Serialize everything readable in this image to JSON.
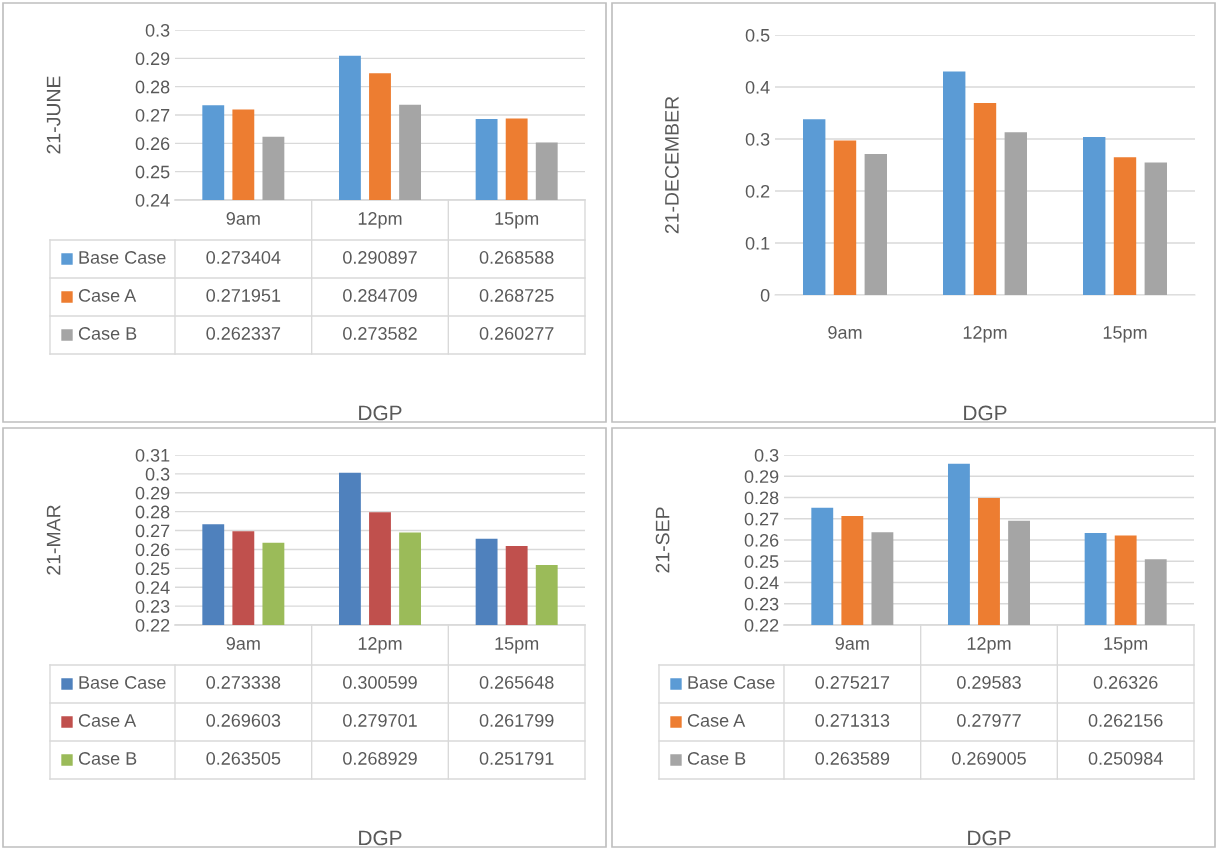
{
  "chart_data": [
    {
      "type": "bar",
      "ylabel": "21-JUNE",
      "xlabel": "DGP",
      "categories": [
        "9am",
        "12pm",
        "15pm"
      ],
      "ylim": [
        0.24,
        0.3
      ],
      "yticks": [
        0.24,
        0.25,
        0.26,
        0.27,
        0.28,
        0.29,
        0.3
      ],
      "grid": "y",
      "data_labels": true,
      "legend": "bottom",
      "series": [
        {
          "name": "Base Case",
          "color": "#5b9bd5",
          "values": [
            0.273404,
            0.290897,
            0.268588
          ]
        },
        {
          "name": "Case A",
          "color": "#ed7d31",
          "values": [
            0.271951,
            0.284709,
            0.268725
          ]
        },
        {
          "name": "Case B",
          "color": "#a5a5a5",
          "values": [
            0.262337,
            0.273582,
            0.260277
          ]
        }
      ]
    },
    {
      "type": "bar",
      "ylabel": "21-DECEMBER",
      "xlabel": "DGP",
      "categories": [
        "9am",
        "12pm",
        "15pm"
      ],
      "ylim": [
        0,
        0.5
      ],
      "yticks": [
        0,
        0.1,
        0.2,
        0.3,
        0.4,
        0.5
      ],
      "grid": "y",
      "series": [
        {
          "color": "#5b9bd5",
          "values": [
            0.338,
            0.43,
            0.304
          ]
        },
        {
          "color": "#ed7d31",
          "values": [
            0.297,
            0.369,
            0.265
          ]
        },
        {
          "color": "#a5a5a5",
          "values": [
            0.271,
            0.313,
            0.255
          ]
        }
      ]
    },
    {
      "type": "bar",
      "ylabel": "21-MAR",
      "xlabel": "DGP",
      "categories": [
        "9am",
        "12pm",
        "15pm"
      ],
      "ylim": [
        0.22,
        0.31
      ],
      "yticks": [
        0.22,
        0.23,
        0.24,
        0.25,
        0.26,
        0.27,
        0.28,
        0.29,
        0.3,
        0.31
      ],
      "grid": "y",
      "data_labels": true,
      "legend": "bottom",
      "series": [
        {
          "name": "Base Case",
          "color": "#4f81bd",
          "values": [
            0.273338,
            0.300599,
            0.265648
          ]
        },
        {
          "name": "Case A",
          "color": "#c0504d",
          "values": [
            0.269603,
            0.279701,
            0.261799
          ]
        },
        {
          "name": "Case B",
          "color": "#9bbb59",
          "values": [
            0.263505,
            0.268929,
            0.251791
          ]
        }
      ]
    },
    {
      "type": "bar",
      "ylabel": "21-SEP",
      "xlabel": "DGP",
      "categories": [
        "9am",
        "12pm",
        "15pm"
      ],
      "ylim": [
        0.22,
        0.3
      ],
      "yticks": [
        0.22,
        0.23,
        0.24,
        0.25,
        0.26,
        0.27,
        0.28,
        0.29,
        0.3
      ],
      "grid": "y",
      "data_labels": true,
      "legend": "bottom",
      "series": [
        {
          "name": "Base Case",
          "color": "#5b9bd5",
          "values": [
            0.275217,
            0.29583,
            0.26326
          ]
        },
        {
          "name": "Case A",
          "color": "#ed7d31",
          "values": [
            0.271313,
            0.27977,
            0.262156
          ]
        },
        {
          "name": "Case B",
          "color": "#a5a5a5",
          "values": [
            0.263589,
            0.269005,
            0.250984
          ]
        }
      ]
    }
  ]
}
